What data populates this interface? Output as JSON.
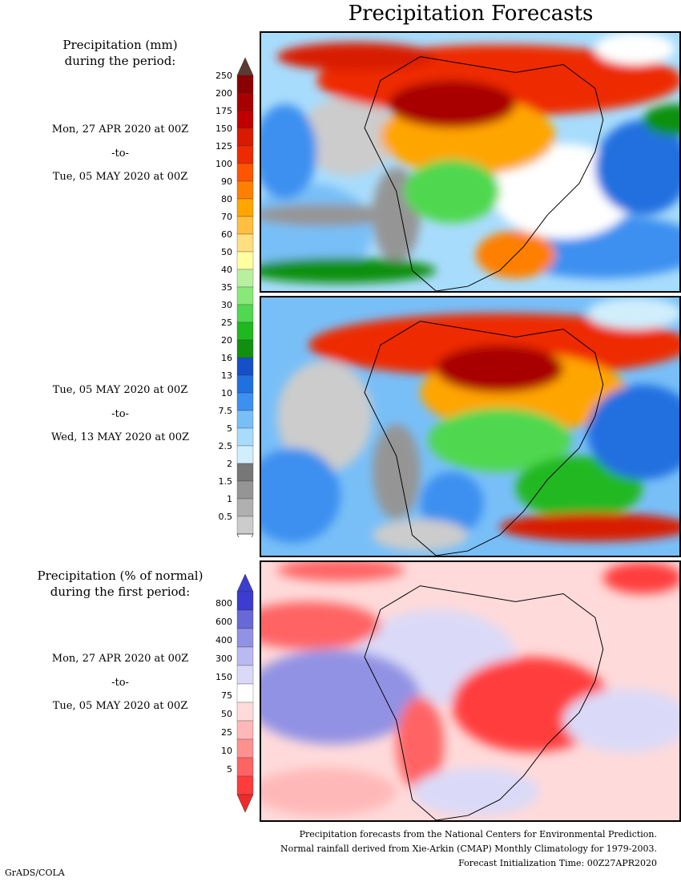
{
  "title": "Precipitation Forecasts",
  "panel1": {
    "heading": [
      "Precipitation (mm)",
      "during the period:"
    ],
    "start": "Mon, 27 APR 2020 at 00Z",
    "sep": "-to-",
    "end": "Tue, 05 MAY 2020 at 00Z"
  },
  "panel2": {
    "start": "Tue, 05 MAY 2020 at 00Z",
    "sep": "-to-",
    "end": "Wed, 13 MAY 2020 at 00Z"
  },
  "panel3": {
    "heading": [
      "Precipitation (% of normal)",
      "during the first period:"
    ],
    "start": "Mon, 27 APR 2020 at 00Z",
    "sep": "-to-",
    "end": "Tue, 05 MAY 2020 at 00Z"
  },
  "precip_scale": {
    "labels": [
      "250",
      "200",
      "175",
      "150",
      "125",
      "100",
      "90",
      "80",
      "70",
      "60",
      "50",
      "40",
      "35",
      "30",
      "25",
      "20",
      "16",
      "13",
      "10",
      "7.5",
      "5",
      "2.5",
      "2",
      "1.5",
      "1",
      "0.5"
    ],
    "colors": [
      "#8b0000",
      "#a80000",
      "#c00000",
      "#d81a00",
      "#ee2a00",
      "#ff5500",
      "#ff7f00",
      "#ffa500",
      "#ffbf40",
      "#ffdf80",
      "#ffffa0",
      "#b8f0a0",
      "#88e878",
      "#50d850",
      "#20b820",
      "#109010",
      "#1550c8",
      "#2070e0",
      "#3c90f0",
      "#78bff8",
      "#a8dcfc",
      "#d0eefc",
      "#777777",
      "#959595",
      "#b0b0b0",
      "#cccccc"
    ],
    "top_cap": "#5c3a32"
  },
  "anom_scale": {
    "labels": [
      "800",
      "600",
      "400",
      "300",
      "150",
      "75",
      "50",
      "25",
      "10",
      "5"
    ],
    "colors": [
      "#3c3cd0",
      "#6868d8",
      "#9292e4",
      "#babaf0",
      "#dadaf8",
      "#ffffff",
      "#ffdada",
      "#ffb8b8",
      "#ff9090",
      "#ff6464",
      "#ff3c3c"
    ],
    "top_cap": "#3c3cd0",
    "bottom_cap": "#ee2a2a"
  },
  "credits": [
    "Precipitation forecasts from the National Centers for Environmental Prediction.",
    "Normal rainfall derived from Xie-Arkin (CMAP) Monthly Climatology for 1979-2003.",
    "Forecast Initialization Time: 00Z27APR2020"
  ],
  "footer": "GrADS/COLA"
}
